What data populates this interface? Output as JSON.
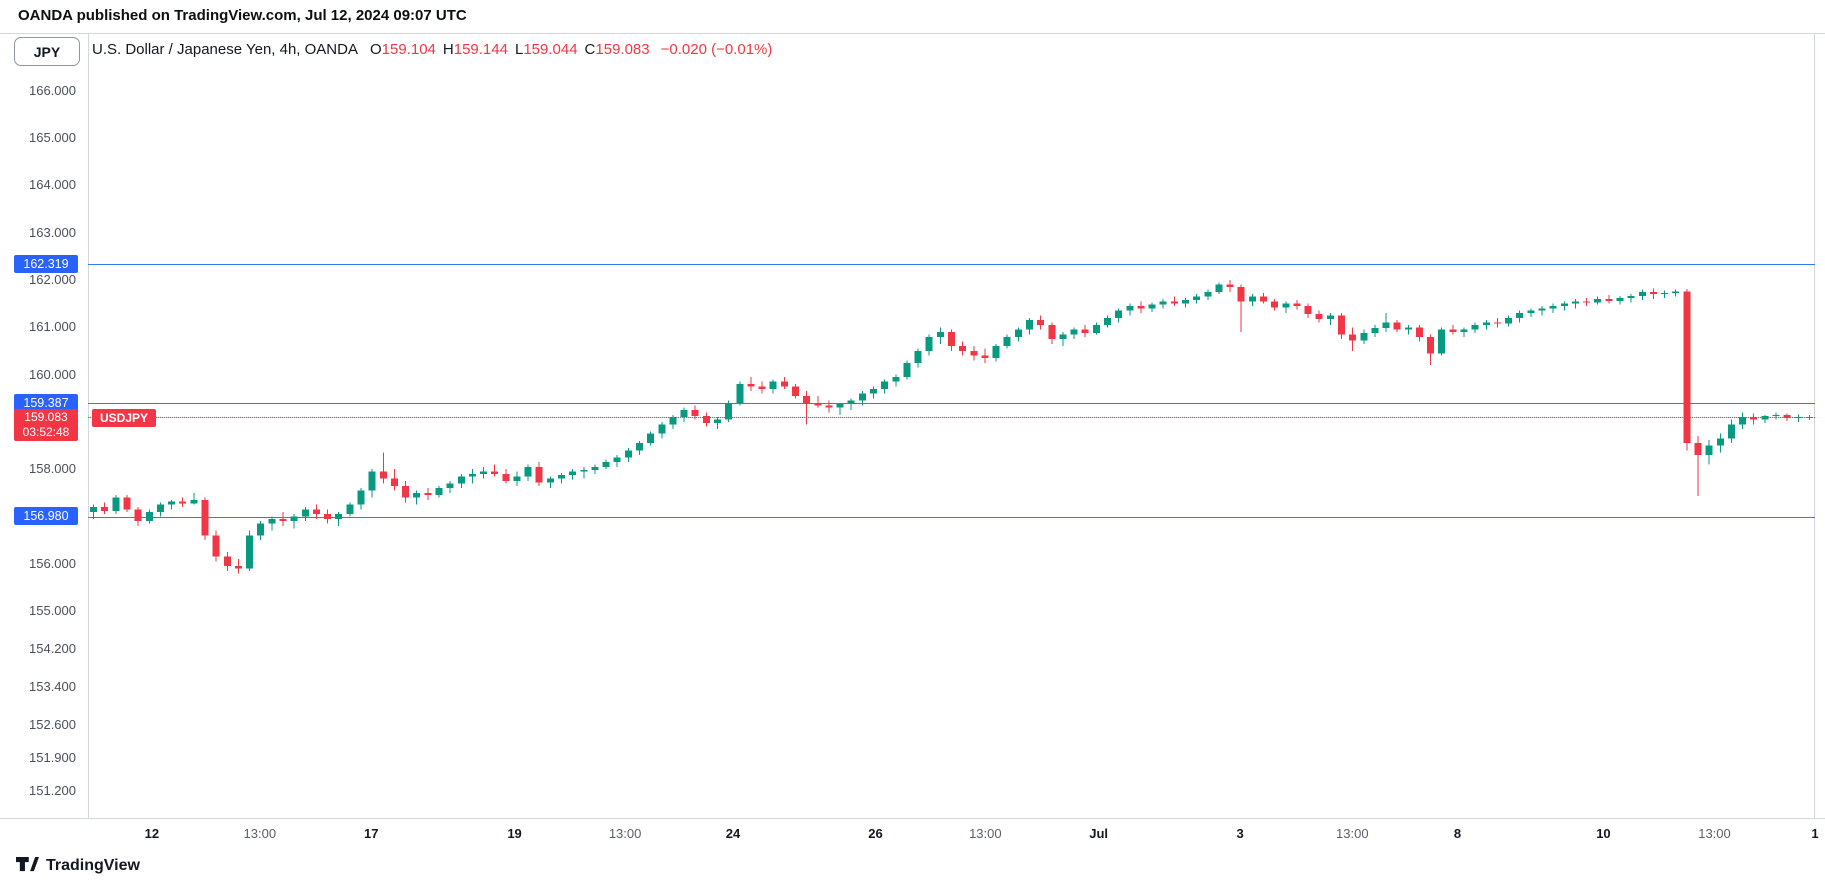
{
  "header": {
    "publish_line": "OANDA published on TradingView.com, Jul 12, 2024 09:07 UTC"
  },
  "legend": {
    "symbol_button": "JPY",
    "title": "U.S. Dollar / Japanese Yen, 4h, OANDA",
    "o_label": "O",
    "o": "159.104",
    "h_label": "H",
    "h": "159.144",
    "l_label": "L",
    "l": "159.044",
    "c_label": "C",
    "c": "159.083",
    "change": "−0.020 (−0.01%)"
  },
  "footer": {
    "logo_text": "TradingView"
  },
  "chart_data": {
    "type": "candlestick",
    "symbol": "USDJPY",
    "title": "U.S. Dollar / Japanese Yen, 4h, OANDA",
    "interval": "4h",
    "exchange": "OANDA",
    "ohlc_current": {
      "open": 159.104,
      "high": 159.144,
      "low": 159.044,
      "close": 159.083,
      "change": -0.02,
      "change_pct": "-0.01%"
    },
    "price_axis_ticks": [
      "166.000",
      "165.000",
      "164.000",
      "163.000",
      "162.000",
      "161.000",
      "160.000",
      "158.000",
      "156.000",
      "155.000",
      "154.200",
      "153.400",
      "152.600",
      "151.900",
      "151.200"
    ],
    "time_axis_ticks": [
      {
        "label": "12",
        "pos": 0.037,
        "bold": true
      },
      {
        "label": "13:00",
        "pos": 0.0995,
        "bold": false
      },
      {
        "label": "17",
        "pos": 0.164,
        "bold": true
      },
      {
        "label": "19",
        "pos": 0.247,
        "bold": true
      },
      {
        "label": "13:00",
        "pos": 0.311,
        "bold": false
      },
      {
        "label": "24",
        "pos": 0.3735,
        "bold": true
      },
      {
        "label": "26",
        "pos": 0.456,
        "bold": true
      },
      {
        "label": "13:00",
        "pos": 0.5196,
        "bold": false
      },
      {
        "label": "Jul",
        "pos": 0.5852,
        "bold": true
      },
      {
        "label": "3",
        "pos": 0.6671,
        "bold": true
      },
      {
        "label": "13:00",
        "pos": 0.7321,
        "bold": false
      },
      {
        "label": "8",
        "pos": 0.793,
        "bold": true
      },
      {
        "label": "10",
        "pos": 0.8775,
        "bold": true
      },
      {
        "label": "13:00",
        "pos": 0.9418,
        "bold": false
      },
      {
        "label": "1",
        "pos": 1.0,
        "bold": true
      }
    ],
    "levels": [
      {
        "price": 162.319,
        "label": "162.319"
      },
      {
        "price": 159.387,
        "label": "159.387"
      },
      {
        "price": 156.98,
        "label": "156.980"
      }
    ],
    "current_price": {
      "price": 159.083,
      "label": "159.083",
      "countdown": "03:52:48",
      "tag": "USDJPY"
    },
    "colors": {
      "up": "#089981",
      "down": "#f23645",
      "level": "#2962ff",
      "last": "#f23645"
    },
    "candles": [
      [
        157.1,
        157.25,
        156.95,
        157.2
      ],
      [
        157.2,
        157.3,
        157.05,
        157.12
      ],
      [
        157.12,
        157.45,
        157.05,
        157.4
      ],
      [
        157.4,
        157.45,
        157.1,
        157.15
      ],
      [
        157.15,
        157.2,
        156.8,
        156.9
      ],
      [
        156.9,
        157.15,
        156.85,
        157.1
      ],
      [
        157.1,
        157.3,
        157.0,
        157.25
      ],
      [
        157.25,
        157.35,
        157.15,
        157.32
      ],
      [
        157.32,
        157.4,
        157.2,
        157.28
      ],
      [
        157.28,
        157.5,
        157.25,
        157.35
      ],
      [
        157.35,
        157.4,
        156.5,
        156.6
      ],
      [
        156.6,
        156.7,
        156.05,
        156.15
      ],
      [
        156.15,
        156.25,
        155.85,
        155.95
      ],
      [
        155.95,
        156.1,
        155.8,
        155.9
      ],
      [
        155.9,
        156.7,
        155.85,
        156.6
      ],
      [
        156.6,
        156.9,
        156.5,
        156.85
      ],
      [
        156.85,
        157.0,
        156.7,
        156.95
      ],
      [
        156.95,
        157.1,
        156.8,
        156.9
      ],
      [
        156.9,
        157.05,
        156.75,
        157.0
      ],
      [
        157.0,
        157.2,
        156.9,
        157.15
      ],
      [
        157.15,
        157.25,
        156.95,
        157.05
      ],
      [
        157.05,
        157.15,
        156.85,
        156.95
      ],
      [
        156.95,
        157.1,
        156.8,
        157.05
      ],
      [
        157.05,
        157.3,
        157.0,
        157.25
      ],
      [
        157.25,
        157.6,
        157.15,
        157.55
      ],
      [
        157.55,
        158.0,
        157.4,
        157.95
      ],
      [
        157.95,
        158.35,
        157.7,
        157.8
      ],
      [
        157.8,
        158.0,
        157.55,
        157.65
      ],
      [
        157.65,
        157.75,
        157.3,
        157.4
      ],
      [
        157.4,
        157.55,
        157.25,
        157.5
      ],
      [
        157.5,
        157.6,
        157.35,
        157.45
      ],
      [
        157.45,
        157.65,
        157.4,
        157.6
      ],
      [
        157.6,
        157.75,
        157.5,
        157.7
      ],
      [
        157.7,
        157.9,
        157.6,
        157.85
      ],
      [
        157.85,
        158.0,
        157.7,
        157.9
      ],
      [
        157.9,
        158.05,
        157.8,
        157.95
      ],
      [
        157.95,
        158.1,
        157.85,
        157.9
      ],
      [
        157.9,
        158.0,
        157.7,
        157.75
      ],
      [
        157.75,
        157.95,
        157.65,
        157.85
      ],
      [
        157.85,
        158.1,
        157.75,
        158.05
      ],
      [
        158.05,
        158.15,
        157.65,
        157.72
      ],
      [
        157.72,
        157.85,
        157.6,
        157.8
      ],
      [
        157.8,
        157.92,
        157.7,
        157.88
      ],
      [
        157.88,
        158.0,
        157.78,
        157.95
      ],
      [
        157.95,
        158.05,
        157.8,
        157.98
      ],
      [
        157.98,
        158.1,
        157.9,
        158.05
      ],
      [
        158.05,
        158.2,
        158.0,
        158.15
      ],
      [
        158.15,
        158.3,
        158.05,
        158.25
      ],
      [
        158.25,
        158.45,
        158.15,
        158.4
      ],
      [
        158.4,
        158.6,
        158.3,
        158.55
      ],
      [
        158.55,
        158.8,
        158.5,
        158.75
      ],
      [
        158.75,
        159.0,
        158.65,
        158.95
      ],
      [
        158.95,
        159.15,
        158.85,
        159.1
      ],
      [
        159.1,
        159.3,
        159.0,
        159.25
      ],
      [
        159.25,
        159.35,
        159.05,
        159.12
      ],
      [
        159.12,
        159.2,
        158.9,
        158.98
      ],
      [
        158.98,
        159.1,
        158.85,
        159.05
      ],
      [
        159.05,
        159.45,
        159.0,
        159.4
      ],
      [
        159.4,
        159.85,
        159.35,
        159.8
      ],
      [
        159.8,
        159.95,
        159.65,
        159.75
      ],
      [
        159.75,
        159.85,
        159.6,
        159.7
      ],
      [
        159.7,
        159.9,
        159.6,
        159.85
      ],
      [
        159.85,
        159.95,
        159.7,
        159.75
      ],
      [
        159.75,
        159.8,
        159.5,
        159.55
      ],
      [
        159.55,
        159.65,
        158.95,
        159.4
      ],
      [
        159.4,
        159.55,
        159.3,
        159.35
      ],
      [
        159.35,
        159.45,
        159.2,
        159.3
      ],
      [
        159.3,
        159.4,
        159.15,
        159.38
      ],
      [
        159.38,
        159.5,
        159.25,
        159.45
      ],
      [
        159.45,
        159.65,
        159.35,
        159.6
      ],
      [
        159.6,
        159.75,
        159.5,
        159.7
      ],
      [
        159.7,
        159.9,
        159.6,
        159.85
      ],
      [
        159.85,
        160.0,
        159.75,
        159.95
      ],
      [
        159.95,
        160.3,
        159.9,
        160.25
      ],
      [
        160.25,
        160.55,
        160.15,
        160.5
      ],
      [
        160.5,
        160.85,
        160.4,
        160.8
      ],
      [
        160.8,
        161.0,
        160.65,
        160.9
      ],
      [
        160.9,
        160.95,
        160.5,
        160.6
      ],
      [
        160.6,
        160.7,
        160.4,
        160.5
      ],
      [
        160.5,
        160.6,
        160.3,
        160.4
      ],
      [
        160.4,
        160.55,
        160.25,
        160.35
      ],
      [
        160.35,
        160.65,
        160.28,
        160.6
      ],
      [
        160.6,
        160.85,
        160.55,
        160.8
      ],
      [
        160.8,
        161.0,
        160.7,
        160.95
      ],
      [
        160.95,
        161.2,
        160.85,
        161.15
      ],
      [
        161.15,
        161.25,
        160.95,
        161.05
      ],
      [
        161.05,
        161.1,
        160.65,
        160.75
      ],
      [
        160.75,
        160.9,
        160.6,
        160.85
      ],
      [
        160.85,
        161.0,
        160.75,
        160.95
      ],
      [
        160.95,
        161.05,
        160.8,
        160.88
      ],
      [
        160.88,
        161.1,
        160.85,
        161.05
      ],
      [
        161.05,
        161.25,
        161.0,
        161.2
      ],
      [
        161.2,
        161.4,
        161.1,
        161.35
      ],
      [
        161.35,
        161.5,
        161.25,
        161.45
      ],
      [
        161.45,
        161.55,
        161.3,
        161.4
      ],
      [
        161.4,
        161.52,
        161.32,
        161.48
      ],
      [
        161.48,
        161.6,
        161.4,
        161.55
      ],
      [
        161.55,
        161.65,
        161.45,
        161.5
      ],
      [
        161.5,
        161.62,
        161.42,
        161.58
      ],
      [
        161.58,
        161.7,
        161.5,
        161.65
      ],
      [
        161.65,
        161.8,
        161.58,
        161.75
      ],
      [
        161.75,
        161.95,
        161.7,
        161.9
      ],
      [
        161.9,
        162.0,
        161.75,
        161.85
      ],
      [
        161.85,
        161.9,
        160.9,
        161.55
      ],
      [
        161.55,
        161.7,
        161.45,
        161.65
      ],
      [
        161.65,
        161.72,
        161.5,
        161.55
      ],
      [
        161.55,
        161.6,
        161.35,
        161.42
      ],
      [
        161.42,
        161.55,
        161.3,
        161.5
      ],
      [
        161.5,
        161.58,
        161.38,
        161.45
      ],
      [
        161.45,
        161.5,
        161.2,
        161.28
      ],
      [
        161.28,
        161.35,
        161.1,
        161.18
      ],
      [
        161.18,
        161.3,
        161.05,
        161.25
      ],
      [
        161.25,
        161.3,
        160.75,
        160.85
      ],
      [
        160.85,
        161.0,
        160.5,
        160.72
      ],
      [
        160.72,
        160.95,
        160.65,
        160.88
      ],
      [
        160.88,
        161.05,
        160.8,
        160.98
      ],
      [
        160.98,
        161.3,
        160.9,
        161.1
      ],
      [
        161.1,
        161.15,
        160.9,
        160.95
      ],
      [
        160.95,
        161.05,
        160.85,
        161.0
      ],
      [
        161.0,
        161.05,
        160.7,
        160.8
      ],
      [
        160.8,
        160.85,
        160.2,
        160.45
      ],
      [
        160.45,
        161.0,
        160.4,
        160.95
      ],
      [
        160.95,
        161.05,
        160.85,
        160.9
      ],
      [
        160.9,
        161.0,
        160.8,
        160.95
      ],
      [
        160.95,
        161.1,
        160.88,
        161.05
      ],
      [
        161.05,
        161.15,
        160.95,
        161.1
      ],
      [
        161.1,
        161.2,
        161.0,
        161.08
      ],
      [
        161.08,
        161.25,
        161.02,
        161.2
      ],
      [
        161.2,
        161.35,
        161.1,
        161.3
      ],
      [
        161.3,
        161.4,
        161.22,
        161.35
      ],
      [
        161.35,
        161.45,
        161.25,
        161.4
      ],
      [
        161.4,
        161.5,
        161.3,
        161.45
      ],
      [
        161.45,
        161.55,
        161.35,
        161.5
      ],
      [
        161.5,
        161.6,
        161.4,
        161.55
      ],
      [
        161.55,
        161.62,
        161.45,
        161.52
      ],
      [
        161.52,
        161.65,
        161.48,
        161.6
      ],
      [
        161.6,
        161.68,
        161.5,
        161.56
      ],
      [
        161.56,
        161.66,
        161.48,
        161.62
      ],
      [
        161.62,
        161.7,
        161.52,
        161.66
      ],
      [
        161.66,
        161.8,
        161.58,
        161.75
      ],
      [
        161.75,
        161.82,
        161.6,
        161.7
      ],
      [
        161.7,
        161.78,
        161.62,
        161.72
      ],
      [
        161.72,
        161.8,
        161.65,
        161.76
      ],
      [
        161.76,
        161.81,
        158.4,
        158.55
      ],
      [
        158.55,
        158.7,
        157.43,
        158.3
      ],
      [
        158.3,
        158.62,
        158.1,
        158.5
      ],
      [
        158.5,
        158.75,
        158.35,
        158.65
      ],
      [
        158.65,
        159.05,
        158.55,
        158.95
      ],
      [
        158.95,
        159.2,
        158.85,
        159.1
      ],
      [
        159.1,
        159.18,
        158.95,
        159.05
      ],
      [
        159.05,
        159.15,
        158.98,
        159.12
      ],
      [
        159.12,
        159.2,
        159.05,
        159.15
      ],
      [
        159.15,
        159.18,
        159.02,
        159.08
      ],
      [
        159.08,
        159.16,
        159.0,
        159.104
      ],
      [
        159.104,
        159.144,
        159.044,
        159.083
      ]
    ]
  }
}
